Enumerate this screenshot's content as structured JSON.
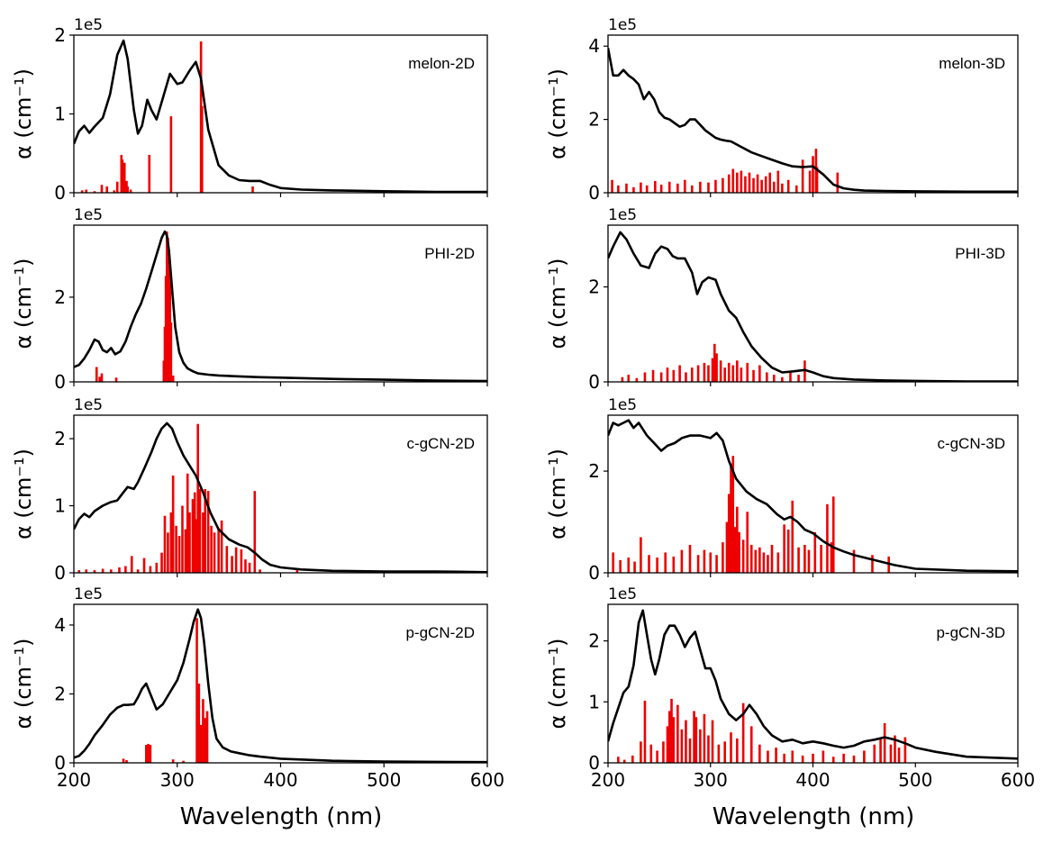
{
  "figure": {
    "x_axis_title": "Wavelength (nm)",
    "y_axis_title": "α (cm⁻¹)",
    "multiplier_label": "1e5",
    "x_ticks": [
      200,
      300,
      400,
      500,
      600
    ],
    "x_tick_labels": [
      "200",
      "300",
      "400",
      "500",
      "600"
    ]
  },
  "chart_data": [
    {
      "type": "line+bar",
      "label": "melon-2D",
      "column": "left",
      "row": 0,
      "xlim": [
        200,
        600
      ],
      "ylim": [
        0,
        2.0
      ],
      "multiplier": "1e5",
      "yticks": [
        0,
        1,
        2
      ],
      "ytick_labels": [
        "0",
        "1",
        "2"
      ],
      "curve_x": [
        200,
        205,
        210,
        215,
        220,
        228,
        235,
        242,
        248,
        252,
        258,
        262,
        266,
        271,
        275,
        280,
        285,
        293,
        300,
        305,
        312,
        318,
        323,
        330,
        340,
        350,
        360,
        370,
        380,
        390,
        400,
        420,
        450,
        500,
        550,
        600
      ],
      "curve_y": [
        0.62,
        0.78,
        0.85,
        0.76,
        0.84,
        0.95,
        1.25,
        1.75,
        1.93,
        1.7,
        1.05,
        0.75,
        0.85,
        1.18,
        1.05,
        0.93,
        1.15,
        1.51,
        1.38,
        1.4,
        1.55,
        1.66,
        1.45,
        0.8,
        0.35,
        0.22,
        0.16,
        0.15,
        0.15,
        0.1,
        0.06,
        0.04,
        0.03,
        0.02,
        0.01,
        0.01
      ],
      "bars_x": [
        208,
        212,
        220,
        227,
        232,
        239,
        242,
        246,
        247,
        249,
        251,
        252,
        255,
        273,
        294,
        323,
        324,
        373
      ],
      "bars_y": [
        0.03,
        0.04,
        0.02,
        0.1,
        0.08,
        0.03,
        0.14,
        0.48,
        0.42,
        0.38,
        0.15,
        0.08,
        0.04,
        0.48,
        0.97,
        1.92,
        1.1,
        0.08
      ]
    },
    {
      "type": "line+bar",
      "label": "melon-3D",
      "column": "right",
      "row": 0,
      "xlim": [
        200,
        600
      ],
      "ylim": [
        0,
        4.3
      ],
      "multiplier": "1e5",
      "yticks": [
        0,
        2,
        4
      ],
      "ytick_labels": [
        "0",
        "2",
        "4"
      ],
      "curve_x": [
        200,
        205,
        210,
        215,
        220,
        225,
        230,
        235,
        240,
        245,
        250,
        255,
        260,
        265,
        270,
        275,
        280,
        285,
        290,
        295,
        300,
        305,
        310,
        315,
        320,
        330,
        340,
        350,
        360,
        370,
        380,
        390,
        400,
        410,
        420,
        430,
        440,
        450,
        470,
        500,
        550,
        600
      ],
      "curve_y": [
        3.95,
        3.2,
        3.2,
        3.35,
        3.2,
        3.1,
        2.95,
        2.55,
        2.75,
        2.55,
        2.2,
        2.05,
        2.0,
        1.9,
        1.8,
        1.85,
        2.0,
        2.0,
        1.85,
        1.7,
        1.6,
        1.5,
        1.45,
        1.42,
        1.4,
        1.25,
        1.1,
        1.0,
        0.9,
        0.8,
        0.72,
        0.7,
        0.72,
        0.5,
        0.22,
        0.12,
        0.08,
        0.06,
        0.05,
        0.04,
        0.03,
        0.03
      ],
      "bars_x": [
        204,
        210,
        218,
        225,
        232,
        238,
        246,
        252,
        260,
        268,
        275,
        282,
        290,
        298,
        305,
        312,
        318,
        322,
        326,
        330,
        334,
        338,
        342,
        346,
        350,
        354,
        358,
        362,
        366,
        370,
        376,
        384,
        390,
        397,
        400,
        403,
        404,
        424
      ],
      "bars_y": [
        0.35,
        0.2,
        0.25,
        0.15,
        0.28,
        0.2,
        0.32,
        0.22,
        0.3,
        0.25,
        0.35,
        0.2,
        0.3,
        0.28,
        0.35,
        0.4,
        0.5,
        0.65,
        0.55,
        0.6,
        0.45,
        0.55,
        0.4,
        0.5,
        0.35,
        0.45,
        0.55,
        0.3,
        0.6,
        0.25,
        0.35,
        0.2,
        0.9,
        0.6,
        1.0,
        1.2,
        0.7,
        0.55
      ]
    },
    {
      "type": "line+bar",
      "label": "PHI-2D",
      "column": "left",
      "row": 1,
      "xlim": [
        200,
        600
      ],
      "ylim": [
        0,
        3.7
      ],
      "multiplier": "1e5",
      "yticks": [
        0,
        2
      ],
      "ytick_labels": [
        "0",
        "2"
      ],
      "curve_x": [
        200,
        205,
        210,
        215,
        220,
        224,
        228,
        232,
        236,
        240,
        245,
        250,
        255,
        260,
        265,
        270,
        275,
        280,
        285,
        288,
        290,
        292,
        295,
        298,
        302,
        306,
        310,
        315,
        320,
        330,
        340,
        360,
        380,
        400,
        450,
        500,
        550,
        600
      ],
      "curve_y": [
        0.35,
        0.4,
        0.55,
        0.75,
        1.0,
        0.95,
        0.75,
        0.7,
        0.8,
        0.65,
        0.72,
        0.95,
        1.3,
        1.6,
        1.85,
        2.2,
        2.6,
        3.0,
        3.4,
        3.55,
        3.45,
        3.1,
        2.2,
        1.3,
        0.7,
        0.45,
        0.32,
        0.25,
        0.2,
        0.17,
        0.15,
        0.13,
        0.11,
        0.1,
        0.07,
        0.05,
        0.03,
        0.02
      ],
      "bars_x": [
        222,
        225,
        227,
        241,
        287,
        288,
        289,
        290,
        291,
        292,
        293,
        294,
        296
      ],
      "bars_y": [
        0.35,
        0.12,
        0.2,
        0.1,
        0.5,
        1.3,
        2.5,
        3.55,
        3.4,
        3.1,
        2.6,
        1.4,
        0.15
      ]
    },
    {
      "type": "line+bar",
      "label": "PHI-3D",
      "column": "right",
      "row": 1,
      "xlim": [
        200,
        600
      ],
      "ylim": [
        0,
        3.3
      ],
      "multiplier": "1e5",
      "yticks": [
        0,
        2
      ],
      "ytick_labels": [
        "0",
        "2"
      ],
      "curve_x": [
        200,
        205,
        212,
        218,
        225,
        232,
        240,
        246,
        252,
        258,
        263,
        268,
        275,
        282,
        287,
        292,
        298,
        305,
        310,
        318,
        325,
        332,
        340,
        350,
        360,
        370,
        380,
        392,
        400,
        410,
        420,
        440,
        470,
        500,
        550,
        600
      ],
      "curve_y": [
        2.6,
        2.85,
        3.15,
        3.0,
        2.7,
        2.45,
        2.4,
        2.7,
        2.85,
        2.8,
        2.65,
        2.6,
        2.6,
        2.3,
        1.85,
        2.1,
        2.2,
        2.15,
        1.85,
        1.5,
        1.35,
        1.05,
        0.75,
        0.5,
        0.3,
        0.2,
        0.22,
        0.25,
        0.2,
        0.12,
        0.08,
        0.05,
        0.03,
        0.02,
        0.01,
        0.01
      ],
      "bars_x": [
        214,
        220,
        228,
        236,
        244,
        252,
        258,
        264,
        270,
        276,
        282,
        288,
        294,
        298,
        302,
        304,
        306,
        310,
        314,
        318,
        322,
        326,
        330,
        336,
        342,
        348,
        355,
        362,
        370,
        378,
        386,
        392
      ],
      "bars_y": [
        0.1,
        0.15,
        0.08,
        0.2,
        0.25,
        0.2,
        0.3,
        0.25,
        0.35,
        0.2,
        0.3,
        0.35,
        0.4,
        0.35,
        0.5,
        0.8,
        0.6,
        0.45,
        0.3,
        0.4,
        0.35,
        0.45,
        0.3,
        0.4,
        0.25,
        0.35,
        0.2,
        0.15,
        0.1,
        0.2,
        0.15,
        0.45
      ]
    },
    {
      "type": "line+bar",
      "label": "c-gCN-2D",
      "column": "left",
      "row": 2,
      "xlim": [
        200,
        600
      ],
      "ylim": [
        0,
        2.35
      ],
      "multiplier": "1e5",
      "yticks": [
        0,
        1,
        2
      ],
      "ytick_labels": [
        "0",
        "1",
        "2"
      ],
      "curve_x": [
        200,
        205,
        210,
        215,
        220,
        228,
        235,
        242,
        248,
        252,
        258,
        262,
        268,
        275,
        280,
        285,
        290,
        295,
        300,
        306,
        312,
        318,
        325,
        332,
        340,
        350,
        360,
        368,
        375,
        382,
        390,
        400,
        420,
        450,
        500,
        550,
        600
      ],
      "curve_y": [
        0.65,
        0.8,
        0.88,
        0.83,
        0.92,
        1.0,
        1.05,
        1.08,
        1.2,
        1.28,
        1.25,
        1.35,
        1.55,
        1.8,
        2.0,
        2.15,
        2.23,
        2.15,
        1.95,
        1.75,
        1.6,
        1.45,
        1.2,
        0.9,
        0.65,
        0.5,
        0.42,
        0.38,
        0.3,
        0.2,
        0.12,
        0.08,
        0.05,
        0.03,
        0.02,
        0.02,
        0.01
      ],
      "bars_x": [
        205,
        212,
        220,
        228,
        236,
        244,
        250,
        256,
        262,
        268,
        274,
        280,
        285,
        288,
        291,
        294,
        296,
        299,
        302,
        305,
        308,
        310,
        312,
        315,
        317,
        319,
        320,
        322,
        325,
        327,
        330,
        333,
        336,
        340,
        343,
        348,
        353,
        357,
        362,
        366,
        370,
        375,
        380,
        416
      ],
      "bars_y": [
        0.04,
        0.05,
        0.04,
        0.06,
        0.05,
        0.08,
        0.1,
        0.25,
        0.05,
        0.22,
        0.1,
        0.15,
        0.3,
        0.85,
        0.6,
        0.9,
        1.45,
        0.7,
        0.55,
        1.0,
        0.65,
        1.48,
        0.9,
        1.1,
        1.2,
        0.8,
        2.22,
        1.25,
        0.9,
        1.25,
        1.22,
        0.7,
        0.6,
        0.65,
        0.78,
        0.4,
        0.25,
        0.38,
        0.35,
        0.2,
        0.15,
        1.22,
        0.05,
        0.06
      ]
    },
    {
      "type": "line+bar",
      "label": "c-gCN-3D",
      "column": "right",
      "row": 2,
      "xlim": [
        200,
        600
      ],
      "ylim": [
        0,
        3.1
      ],
      "multiplier": "1e5",
      "yticks": [
        0,
        2
      ],
      "ytick_labels": [
        "0",
        "2"
      ],
      "curve_x": [
        200,
        205,
        210,
        215,
        220,
        225,
        230,
        238,
        245,
        252,
        258,
        265,
        272,
        280,
        290,
        300,
        306,
        312,
        318,
        325,
        335,
        345,
        355,
        365,
        372,
        378,
        385,
        392,
        400,
        410,
        420,
        430,
        440,
        460,
        480,
        500,
        550,
        600
      ],
      "curve_y": [
        2.7,
        2.95,
        2.9,
        2.95,
        3.0,
        2.85,
        2.95,
        2.7,
        2.55,
        2.4,
        2.5,
        2.55,
        2.65,
        2.7,
        2.7,
        2.65,
        2.75,
        2.6,
        2.2,
        1.85,
        1.6,
        1.45,
        1.35,
        1.15,
        1.05,
        1.1,
        1.0,
        0.85,
        0.78,
        0.62,
        0.5,
        0.42,
        0.35,
        0.25,
        0.15,
        0.08,
        0.04,
        0.03
      ],
      "bars_x": [
        205,
        212,
        220,
        226,
        232,
        240,
        248,
        256,
        264,
        272,
        280,
        288,
        294,
        300,
        306,
        312,
        316,
        318,
        320,
        322,
        324,
        326,
        328,
        332,
        336,
        340,
        344,
        348,
        352,
        356,
        360,
        366,
        372,
        376,
        380,
        386,
        392,
        396,
        402,
        408,
        414,
        418,
        420,
        440,
        458,
        474
      ],
      "bars_y": [
        0.4,
        0.25,
        0.3,
        0.22,
        0.7,
        0.35,
        0.3,
        0.4,
        0.32,
        0.45,
        0.55,
        0.35,
        0.45,
        0.4,
        0.35,
        0.6,
        1.0,
        1.55,
        2.15,
        2.3,
        0.9,
        1.3,
        0.8,
        0.65,
        1.2,
        0.55,
        0.45,
        0.5,
        0.4,
        0.35,
        0.55,
        0.4,
        0.95,
        0.85,
        1.42,
        0.5,
        0.55,
        0.45,
        0.8,
        0.55,
        1.35,
        0.6,
        1.5,
        0.45,
        0.35,
        0.32
      ]
    },
    {
      "type": "line+bar",
      "label": "p-gCN-2D",
      "column": "left",
      "row": 3,
      "xlim": [
        200,
        600
      ],
      "ylim": [
        0,
        4.6
      ],
      "multiplier": "1e5",
      "yticks": [
        0,
        2,
        4
      ],
      "ytick_labels": [
        "0",
        "2",
        "4"
      ],
      "curve_x": [
        200,
        205,
        210,
        215,
        220,
        228,
        235,
        242,
        248,
        252,
        258,
        262,
        266,
        270,
        274,
        280,
        286,
        292,
        300,
        306,
        312,
        316,
        320,
        323,
        326,
        330,
        334,
        338,
        344,
        352,
        360,
        370,
        380,
        400,
        450,
        500,
        550,
        600
      ],
      "curve_y": [
        0.15,
        0.2,
        0.35,
        0.55,
        0.8,
        1.1,
        1.4,
        1.6,
        1.68,
        1.68,
        1.7,
        1.9,
        2.15,
        2.3,
        2.0,
        1.55,
        1.7,
        2.0,
        2.4,
        2.9,
        3.6,
        4.1,
        4.45,
        4.2,
        3.5,
        2.3,
        1.3,
        0.7,
        0.45,
        0.33,
        0.28,
        0.22,
        0.18,
        0.12,
        0.06,
        0.04,
        0.03,
        0.02
      ],
      "bars_x": [
        248,
        251,
        270,
        272,
        274,
        296,
        306,
        319,
        321,
        323,
        325,
        327,
        329
      ],
      "bars_y": [
        0.12,
        0.08,
        0.52,
        0.55,
        0.52,
        0.1,
        0.06,
        4.2,
        2.3,
        1.1,
        1.85,
        1.3,
        1.5
      ]
    },
    {
      "type": "line+bar",
      "label": "p-gCN-3D",
      "column": "right",
      "row": 3,
      "xlim": [
        200,
        600
      ],
      "ylim": [
        0,
        2.6
      ],
      "multiplier": "1e5",
      "yticks": [
        0,
        1,
        2
      ],
      "ytick_labels": [
        "0",
        "1",
        "2"
      ],
      "curve_x": [
        200,
        205,
        210,
        215,
        220,
        225,
        230,
        234,
        238,
        242,
        246,
        250,
        255,
        260,
        265,
        270,
        275,
        280,
        285,
        290,
        295,
        300,
        305,
        310,
        318,
        325,
        332,
        338,
        345,
        352,
        360,
        370,
        380,
        390,
        400,
        410,
        420,
        430,
        440,
        450,
        460,
        470,
        480,
        490,
        500,
        520,
        550,
        600
      ],
      "curve_y": [
        0.35,
        0.65,
        0.9,
        1.15,
        1.25,
        1.6,
        2.3,
        2.5,
        2.1,
        1.7,
        1.45,
        1.7,
        2.1,
        2.25,
        2.25,
        2.1,
        1.9,
        2.05,
        2.15,
        1.85,
        1.55,
        1.55,
        1.35,
        1.05,
        0.8,
        0.7,
        0.8,
        0.95,
        0.8,
        0.6,
        0.45,
        0.35,
        0.38,
        0.32,
        0.35,
        0.32,
        0.28,
        0.25,
        0.28,
        0.35,
        0.38,
        0.42,
        0.38,
        0.32,
        0.25,
        0.18,
        0.1,
        0.07
      ],
      "bars_x": [
        210,
        216,
        224,
        232,
        236,
        242,
        248,
        254,
        258,
        260,
        262,
        264,
        268,
        272,
        276,
        280,
        284,
        286,
        290,
        294,
        298,
        302,
        308,
        314,
        320,
        326,
        332,
        340,
        348,
        356,
        364,
        372,
        380,
        390,
        400,
        410,
        420,
        430,
        440,
        450,
        460,
        466,
        470,
        476,
        480,
        484,
        490
      ],
      "bars_y": [
        0.1,
        0.05,
        0.12,
        0.35,
        1.02,
        0.3,
        0.2,
        0.35,
        0.6,
        0.85,
        1.05,
        0.75,
        0.95,
        0.55,
        0.7,
        0.4,
        0.85,
        0.75,
        0.55,
        0.8,
        0.45,
        0.7,
        0.3,
        0.35,
        0.5,
        0.4,
        0.98,
        0.6,
        0.3,
        0.2,
        0.25,
        0.15,
        0.2,
        0.12,
        0.15,
        0.2,
        0.1,
        0.15,
        0.12,
        0.2,
        0.3,
        0.4,
        0.65,
        0.3,
        0.45,
        0.25,
        0.42
      ]
    }
  ]
}
